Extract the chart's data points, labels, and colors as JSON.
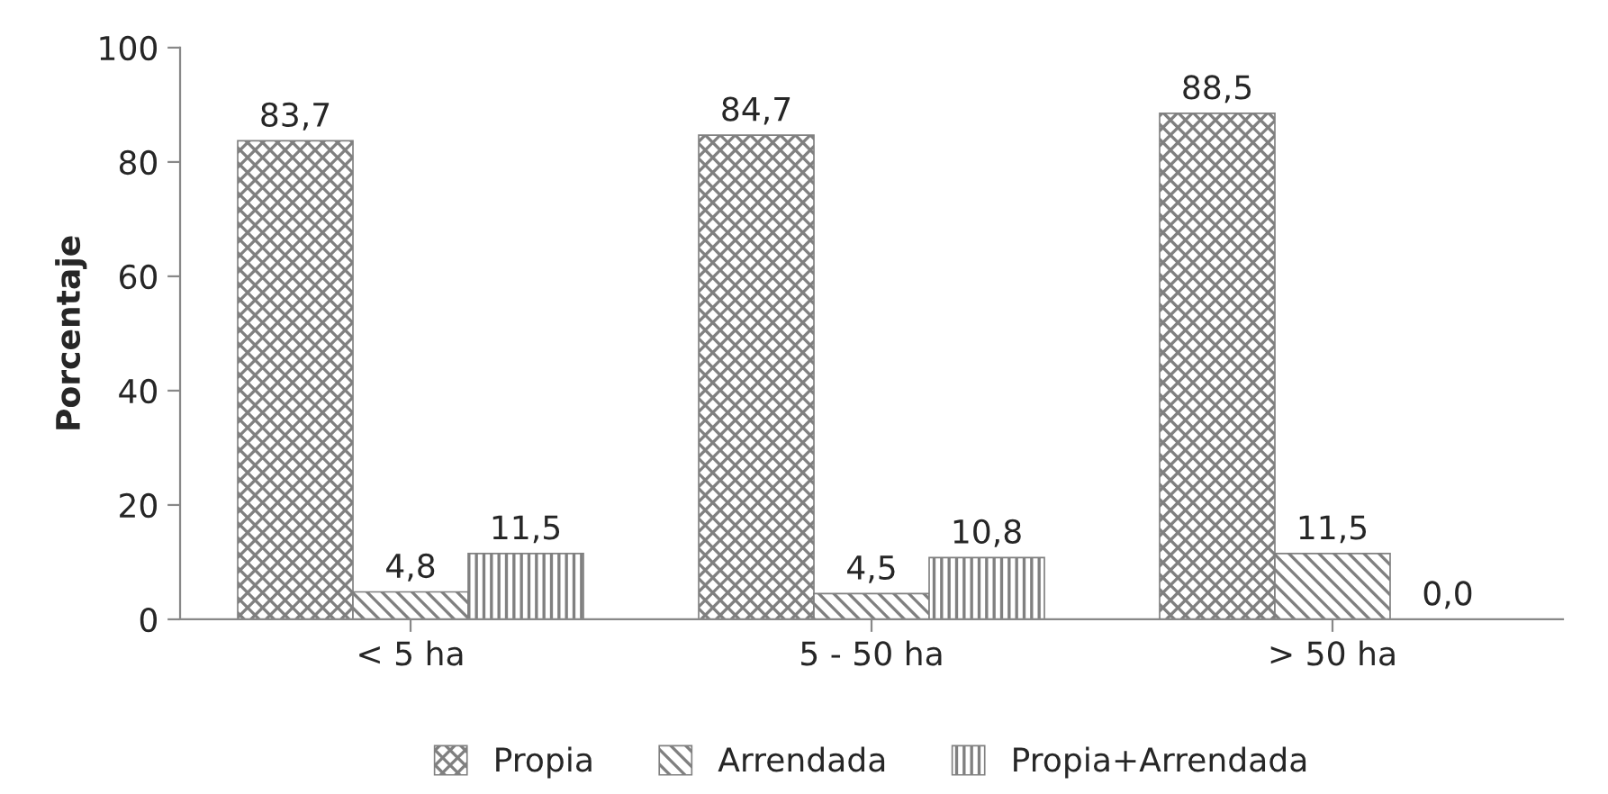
{
  "chart_data": {
    "type": "bar",
    "ylabel": "Porcentaje",
    "categories": [
      "< 5 ha",
      "5 - 50 ha",
      "> 50 ha"
    ],
    "series": [
      {
        "name": "Propia",
        "color": "#808080",
        "values": [
          83.7,
          84.7,
          88.5
        ],
        "value_labels": [
          "83,7",
          "84,7",
          "88,5"
        ]
      },
      {
        "name": "Arrendada",
        "color": "#808080",
        "values": [
          4.8,
          4.5,
          11.5
        ],
        "value_labels": [
          "4,8",
          "4,5",
          "11,5"
        ]
      },
      {
        "name": "Propia+Arrendada",
        "color": "#808080",
        "values": [
          11.5,
          10.8,
          0.0
        ],
        "value_labels": [
          "11,5",
          "10,8",
          "0,0"
        ]
      }
    ],
    "ylim": [
      0,
      100
    ],
    "yticks": [
      0,
      20,
      40,
      60,
      80,
      100
    ],
    "grid": false,
    "legend": "bottom"
  }
}
